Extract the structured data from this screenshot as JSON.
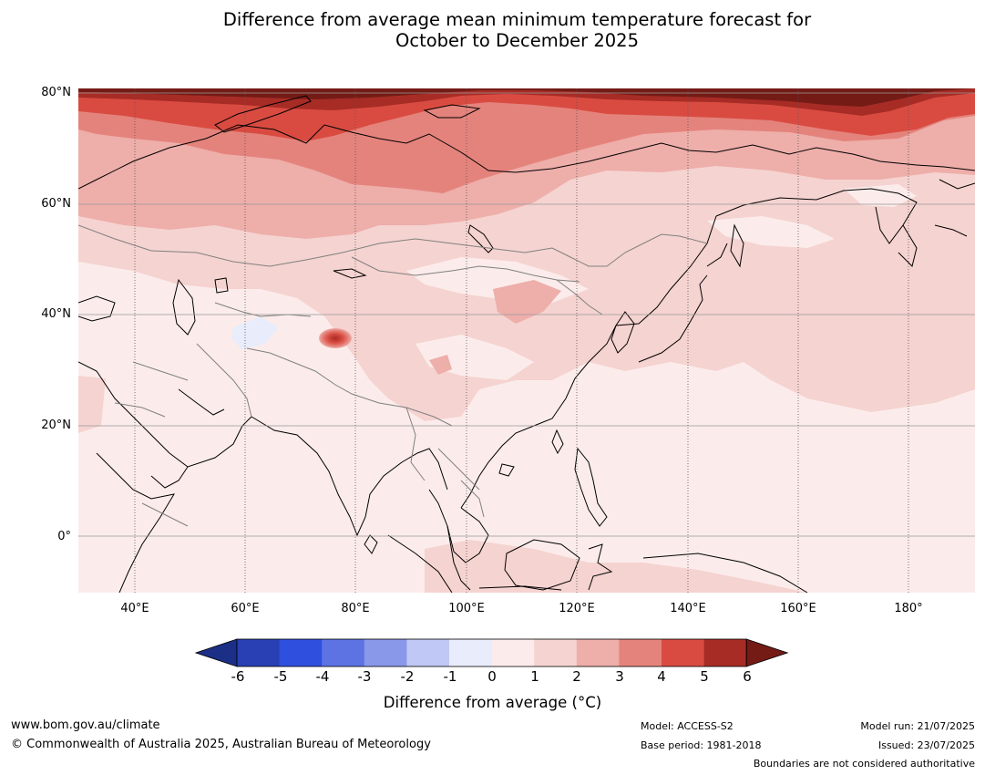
{
  "title": {
    "line1": "Difference from average mean minimum temperature forecast for",
    "line2": "October to December 2025"
  },
  "map": {
    "lat_labels": [
      "80°N",
      "60°N",
      "40°N",
      "20°N",
      "0°"
    ],
    "lon_labels": [
      "40°E",
      "60°E",
      "80°E",
      "100°E",
      "120°E",
      "140°E",
      "160°E",
      "180°"
    ],
    "colors": {
      "land_outline": "#000000",
      "border": "#808080",
      "neg_1_0": "#e8ecfb",
      "pos_0_1": "#fbeceb",
      "pos_1_2": "#f5d3d0",
      "pos_2_3": "#eeaeaa",
      "pos_3_4": "#e4837c",
      "pos_4_5": "#d94b41",
      "pos_5_6": "#a72c25",
      "pos_gt6": "#741b16"
    }
  },
  "colorbar": {
    "ticks": [
      "-6",
      "-5",
      "-4",
      "-3",
      "-2",
      "-1",
      "0",
      "1",
      "2",
      "3",
      "4",
      "5",
      "6"
    ],
    "colors": [
      "#1c2f86",
      "#2840b4",
      "#2f4fde",
      "#5d73e3",
      "#8a98ea",
      "#c0c8f5",
      "#e8ecfb",
      "#fbeceb",
      "#f5d3d0",
      "#eeaeaa",
      "#e4837c",
      "#d94b41",
      "#a72c25",
      "#741b16"
    ],
    "label": "Difference from average (°C)"
  },
  "footer": {
    "website": "www.bom.gov.au/climate",
    "copyright": "© Commonwealth of Australia 2025, Australian Bureau of Meteorology",
    "model": "Model: ACCESS-S2",
    "base_period": "Base period: 1981-2018",
    "model_run": "Model run: 21/07/2025",
    "issued": "Issued: 23/07/2025",
    "disclaimer": "Boundaries are not considered authoritative"
  }
}
